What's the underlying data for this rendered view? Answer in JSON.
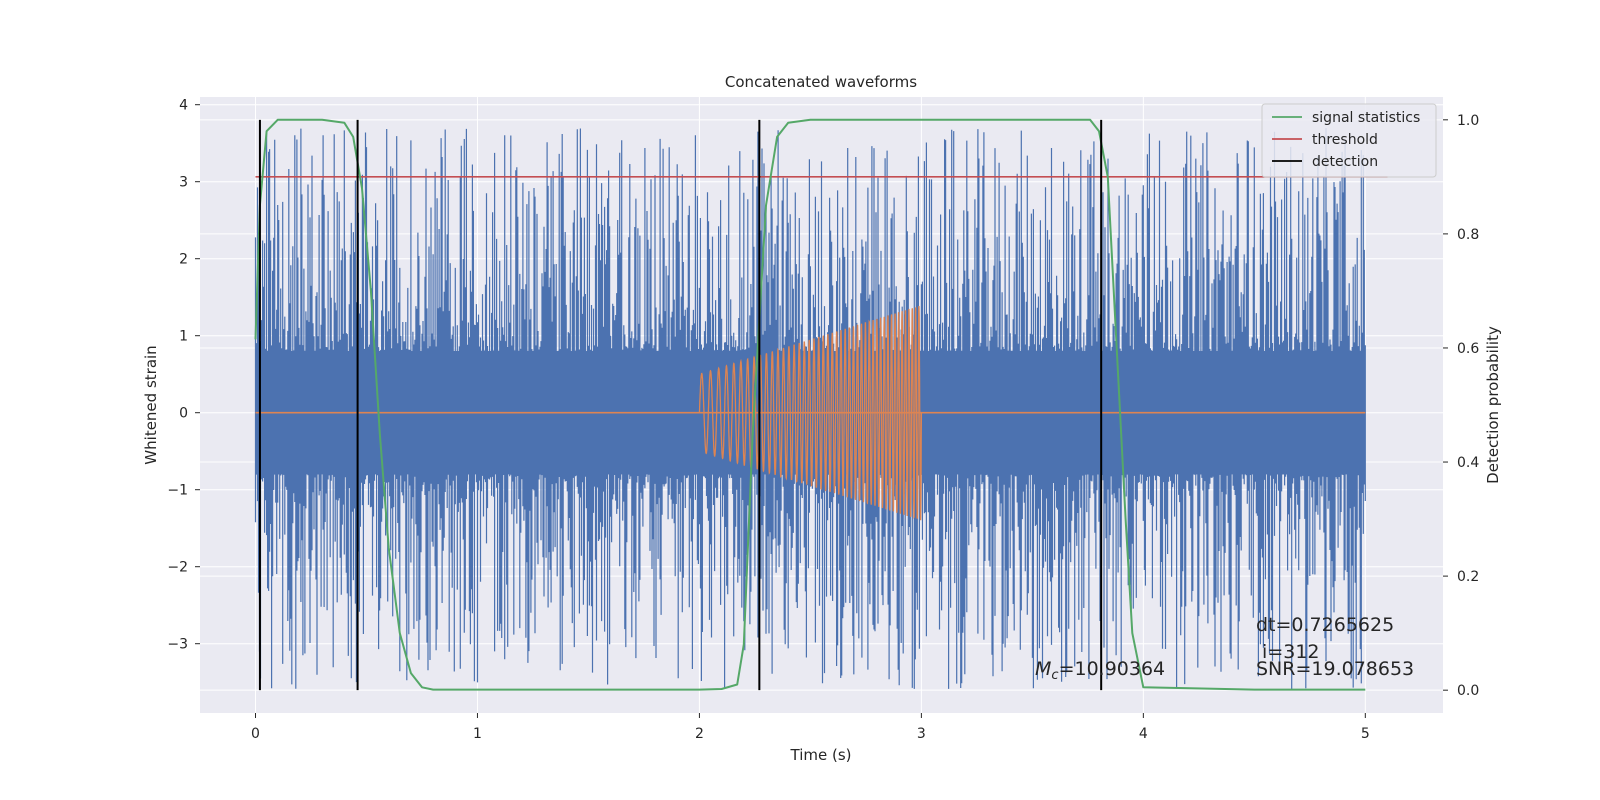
{
  "chart_data": {
    "type": "line",
    "title": "Concatenated waveforms",
    "xlabel": "Time (s)",
    "ylabel": "Whitened strain",
    "y2label": "Detection probability",
    "xlim": [
      -0.25,
      5.35
    ],
    "ylim": [
      -3.9,
      4.1
    ],
    "y2lim": [
      -0.04,
      1.04
    ],
    "xticks": [
      0,
      1,
      2,
      3,
      4,
      5
    ],
    "yticks": [
      -3,
      -2,
      -1,
      0,
      1,
      2,
      3,
      4
    ],
    "y2ticks": [
      0.0,
      0.2,
      0.4,
      0.6,
      0.8,
      1.0
    ],
    "grid": true,
    "legend_position": "top-right",
    "colors": {
      "background": "#eaeaf2",
      "grid": "#ffffff",
      "strain": "#4c72b0",
      "template": "#dd8452",
      "signal_statistics": "#55a868",
      "threshold": "#c44e52",
      "detection": "#000000"
    },
    "series": [
      {
        "name": "signal statistics",
        "axis": "right",
        "x": [
          0.0,
          0.02,
          0.05,
          0.1,
          0.2,
          0.3,
          0.4,
          0.44,
          0.48,
          0.52,
          0.56,
          0.6,
          0.65,
          0.7,
          0.75,
          0.8,
          1.0,
          1.2,
          1.5,
          1.8,
          2.0,
          2.1,
          2.17,
          2.2,
          2.24,
          2.3,
          2.35,
          2.4,
          2.5,
          3.0,
          3.5,
          3.76,
          3.8,
          3.84,
          3.88,
          3.92,
          3.95,
          4.0,
          4.5,
          5.0
        ],
        "y": [
          0.615,
          0.85,
          0.98,
          1.0,
          1.0,
          1.0,
          0.995,
          0.97,
          0.88,
          0.7,
          0.45,
          0.25,
          0.1,
          0.03,
          0.005,
          0.001,
          0.001,
          0.001,
          0.001,
          0.001,
          0.001,
          0.002,
          0.01,
          0.08,
          0.45,
          0.85,
          0.97,
          0.995,
          1.0,
          1.0,
          1.0,
          1.0,
          0.98,
          0.9,
          0.6,
          0.3,
          0.1,
          0.005,
          0.001,
          0.001
        ]
      },
      {
        "name": "threshold",
        "axis": "right",
        "x": [
          0.0,
          5.1
        ],
        "y": [
          0.9,
          0.9
        ]
      },
      {
        "name": "detection",
        "axis": "right",
        "type": "vlines",
        "x": [
          0.02,
          0.46,
          2.27,
          3.81
        ],
        "ymin": 0.0,
        "ymax": 1.0
      },
      {
        "name": "",
        "axis": "left",
        "type": "noise",
        "x_range": [
          0.0,
          5.0
        ],
        "band": 0.8,
        "peak_max": 3.7,
        "trough_min": -3.6
      },
      {
        "name": "",
        "axis": "left",
        "type": "chirp",
        "x_range": [
          2.0,
          3.0
        ],
        "amplitude_start": 0.5,
        "amplitude_end": 1.4,
        "baseline": 0.0
      }
    ],
    "annotations": {
      "mc_symbol": "M",
      "mc_subscript": "c",
      "mc_value": "=10.90364",
      "dt": "dt=0.7265625",
      "i": " i=312",
      "snr": "SNR=19.078653"
    }
  }
}
